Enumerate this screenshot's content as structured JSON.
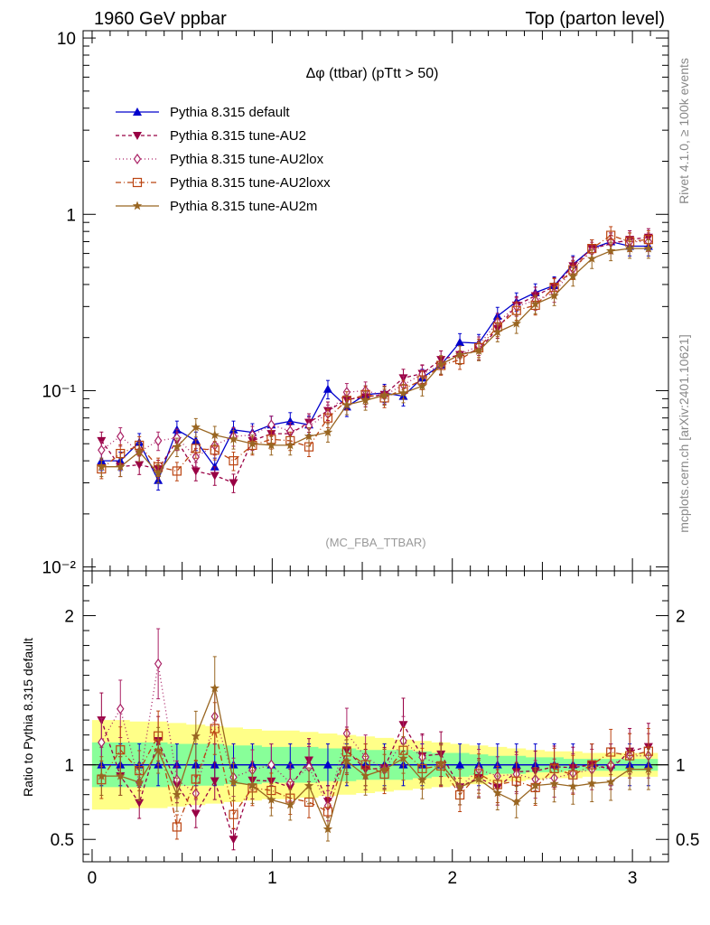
{
  "chart_data": {
    "type": "line",
    "header_left": "1960 GeV ppbar",
    "header_right": "Top (parton level)",
    "title": "Δφ (ttbar) (pTtt > 50)",
    "analysis_label": "(MC_FBA_TTBAR)",
    "side_label_top": "Rivet 4.1.0, ≥ 100k events",
    "side_label_bottom": "mcplots.cern.ch [arXiv:2401.10621]",
    "ylabel_ratio": "Ratio to Pythia 8.315 default",
    "main_ylim": [
      0.0095,
      11
    ],
    "main_yscale": "log",
    "main_yticks": [
      {
        "value": 10,
        "label": "10"
      },
      {
        "value": 1,
        "label": "1"
      },
      {
        "value": 0.1,
        "label": "10⁻¹"
      },
      {
        "value": 0.01,
        "label": "10⁻²"
      }
    ],
    "ratio_ylim": [
      0.35,
      2.3
    ],
    "ratio_yticks": [
      {
        "value": 2,
        "label": "2"
      },
      {
        "value": 1,
        "label": "1"
      },
      {
        "value": 0.5,
        "label": "0.5"
      }
    ],
    "xlim": [
      -0.05,
      3.2
    ],
    "xticks": [
      {
        "value": 0,
        "label": "0"
      },
      {
        "value": 1,
        "label": "1"
      },
      {
        "value": 2,
        "label": "2"
      },
      {
        "value": 3,
        "label": "3"
      }
    ],
    "x": [
      0.052,
      0.157,
      0.262,
      0.367,
      0.471,
      0.576,
      0.681,
      0.785,
      0.89,
      0.995,
      1.1,
      1.204,
      1.309,
      1.414,
      1.518,
      1.623,
      1.728,
      1.833,
      1.937,
      2.042,
      2.147,
      2.251,
      2.356,
      2.461,
      2.566,
      2.67,
      2.775,
      2.88,
      2.985,
      3.089
    ],
    "series": [
      {
        "name": "Pythia 8.315 default",
        "color": "#0000cc",
        "marker": "triangle-up",
        "dash": "",
        "values": [
          0.04,
          0.04,
          0.051,
          0.031,
          0.06,
          0.052,
          0.037,
          0.06,
          0.058,
          0.064,
          0.067,
          0.064,
          0.102,
          0.081,
          0.095,
          0.097,
          0.093,
          0.118,
          0.14,
          0.188,
          0.186,
          0.265,
          0.32,
          0.36,
          0.395,
          0.52,
          0.64,
          0.7,
          0.66,
          0.66
        ]
      },
      {
        "name": "Pythia 8.315 tune-AU2",
        "color": "#990044",
        "marker": "triangle-down",
        "dash": "4,3",
        "values": [
          0.052,
          0.037,
          0.038,
          0.036,
          0.052,
          0.035,
          0.033,
          0.03,
          0.052,
          0.057,
          0.057,
          0.066,
          0.077,
          0.089,
          0.092,
          0.095,
          0.118,
          0.125,
          0.15,
          0.16,
          0.17,
          0.225,
          0.305,
          0.345,
          0.39,
          0.51,
          0.64,
          0.68,
          0.72,
          0.74
        ]
      },
      {
        "name": "Pythia 8.315 tune-AU2lox",
        "color": "#aa2266",
        "marker": "diamond",
        "dash": "1,3",
        "values": [
          0.046,
          0.055,
          0.045,
          0.052,
          0.054,
          0.042,
          0.049,
          0.055,
          0.056,
          0.064,
          0.059,
          0.063,
          0.074,
          0.098,
          0.1,
          0.094,
          0.108,
          0.124,
          0.14,
          0.16,
          0.18,
          0.245,
          0.3,
          0.325,
          0.36,
          0.49,
          0.62,
          0.7,
          0.7,
          0.7
        ]
      },
      {
        "name": "Pythia 8.315 tune-AU2loxx",
        "color": "#bb4411",
        "marker": "square-open",
        "dash": "6,3,1,3",
        "values": [
          0.036,
          0.044,
          0.049,
          0.037,
          0.035,
          0.047,
          0.046,
          0.04,
          0.049,
          0.053,
          0.052,
          0.048,
          0.07,
          0.088,
          0.095,
          0.091,
          0.102,
          0.115,
          0.139,
          0.15,
          0.175,
          0.23,
          0.285,
          0.305,
          0.385,
          0.485,
          0.64,
          0.76,
          0.7,
          0.72
        ]
      },
      {
        "name": "Pythia 8.315 tune-AU2m",
        "color": "#996622",
        "marker": "star",
        "dash": "",
        "values": [
          0.037,
          0.037,
          0.045,
          0.034,
          0.048,
          0.062,
          0.056,
          0.053,
          0.05,
          0.049,
          0.049,
          0.055,
          0.058,
          0.083,
          0.088,
          0.094,
          0.097,
          0.106,
          0.141,
          0.16,
          0.168,
          0.215,
          0.24,
          0.31,
          0.345,
          0.445,
          0.56,
          0.62,
          0.64,
          0.64
        ]
      }
    ],
    "ratio_band_inner": [
      0.15,
      0.15,
      0.15,
      0.15,
      0.14,
      0.14,
      0.14,
      0.13,
      0.13,
      0.12,
      0.12,
      0.12,
      0.11,
      0.11,
      0.1,
      0.1,
      0.1,
      0.09,
      0.08,
      0.08,
      0.07,
      0.06,
      0.06,
      0.05,
      0.05,
      0.04,
      0.04,
      0.04,
      0.04,
      0.04
    ],
    "ratio_band_outer": [
      0.3,
      0.3,
      0.29,
      0.29,
      0.28,
      0.27,
      0.26,
      0.25,
      0.24,
      0.23,
      0.23,
      0.22,
      0.21,
      0.2,
      0.19,
      0.18,
      0.17,
      0.16,
      0.15,
      0.14,
      0.13,
      0.12,
      0.11,
      0.1,
      0.09,
      0.09,
      0.08,
      0.08,
      0.08,
      0.08
    ],
    "legend_position": "top-left"
  }
}
